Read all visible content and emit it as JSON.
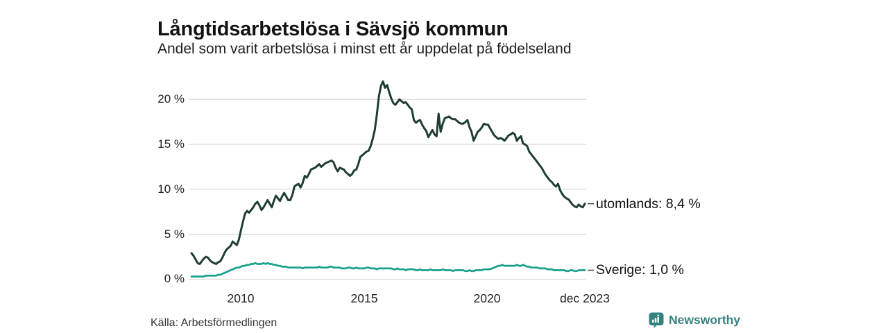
{
  "header": {
    "title": "Långtidsarbetslösa i Sävsjö kommun",
    "subtitle": "Andel som varit arbetslösa i minst ett år uppdelat på födelseland"
  },
  "footer": {
    "source": "Källa: Arbetsförmedlingen",
    "brand_name": "Newsworthy",
    "brand_icon": "newsworthy-speech-bubble-bar-chart-icon"
  },
  "colors": {
    "utomlands_line": "#1f3d34",
    "sverige_line": "#16a08a",
    "grid": "#dcdcdc",
    "tick_text": "#222222",
    "title_text": "#131313",
    "legend_dash": "#4a4a4a",
    "brand_teal": "#35837e"
  },
  "chart_data": {
    "type": "line",
    "title": "Långtidsarbetslösa i Sävsjö kommun",
    "subtitle": "Andel som varit arbetslösa i minst ett år uppdelat på födelseland",
    "unit": "%",
    "frequency": "monthly",
    "x_start": "2008-01",
    "x_end": "2023-12",
    "x_tick_labels": [
      "2010",
      "2015",
      "2020",
      "dec 2023"
    ],
    "y_tick_labels": [
      "0 %",
      "5 %",
      "10 %",
      "15 %",
      "20 %"
    ],
    "y_tick_values": [
      0,
      5,
      10,
      15,
      20
    ],
    "ylim": [
      0,
      22.5
    ],
    "grid": "horizontal",
    "legend_position": "right-of-line-end",
    "series": [
      {
        "name": "utomlands",
        "end_label": "utomlands: 8,4 %",
        "last_value": 8.4,
        "color": "#1f3d34",
        "values": [
          2.9,
          2.6,
          2.2,
          1.8,
          1.7,
          2.0,
          2.3,
          2.5,
          2.4,
          2.1,
          1.9,
          1.8,
          1.7,
          1.9,
          2.0,
          2.4,
          2.9,
          3.3,
          3.5,
          3.7,
          4.2,
          4.0,
          3.8,
          4.4,
          5.4,
          6.4,
          7.3,
          7.6,
          7.4,
          7.7,
          8.0,
          8.4,
          8.6,
          8.2,
          7.7,
          8.0,
          8.4,
          8.8,
          8.4,
          8.0,
          8.7,
          9.3,
          9.0,
          8.7,
          9.2,
          9.6,
          9.2,
          8.8,
          8.8,
          9.4,
          10.3,
          10.5,
          10.6,
          10.2,
          10.7,
          11.5,
          11.3,
          11.7,
          12.2,
          12.3,
          12.4,
          12.6,
          12.8,
          12.5,
          12.7,
          12.9,
          13.0,
          13.1,
          13.2,
          13.0,
          12.4,
          12.0,
          12.4,
          12.3,
          12.2,
          11.9,
          11.7,
          11.5,
          11.7,
          12.1,
          12.2,
          12.8,
          13.6,
          13.8,
          14.0,
          14.2,
          14.3,
          14.8,
          15.6,
          16.6,
          18.3,
          20.3,
          21.5,
          22.0,
          21.3,
          21.6,
          20.8,
          20.1,
          19.6,
          19.4,
          19.7,
          20.0,
          19.8,
          19.6,
          19.7,
          19.4,
          19.1,
          18.9,
          17.7,
          17.4,
          17.6,
          17.7,
          17.2,
          16.8,
          16.5,
          15.8,
          16.2,
          16.6,
          16.1,
          15.9,
          18.4,
          16.4,
          17.3,
          17.9,
          18.0,
          18.1,
          17.9,
          17.8,
          17.8,
          17.6,
          17.4,
          17.3,
          17.3,
          17.5,
          17.7,
          16.9,
          16.4,
          15.4,
          15.9,
          16.4,
          16.6,
          16.9,
          17.3,
          17.2,
          17.2,
          16.8,
          16.4,
          16.0,
          15.8,
          15.6,
          15.7,
          15.6,
          15.4,
          15.7,
          16.0,
          16.1,
          16.3,
          16.1,
          15.4,
          15.7,
          15.9,
          15.1,
          15.0,
          14.8,
          14.2,
          13.9,
          13.6,
          13.3,
          13.0,
          12.7,
          12.4,
          12.0,
          11.6,
          11.3,
          11.0,
          10.8,
          10.5,
          10.3,
          10.6,
          9.9,
          9.5,
          9.2,
          9.0,
          8.9,
          8.6,
          8.3,
          8.1,
          8.0,
          8.3,
          8.1,
          8.0,
          8.4
        ]
      },
      {
        "name": "Sverige",
        "end_label": "Sverige: 1,0 %",
        "last_value": 1.0,
        "color": "#16a08a",
        "values": [
          0.3,
          0.3,
          0.3,
          0.3,
          0.3,
          0.3,
          0.3,
          0.4,
          0.4,
          0.4,
          0.4,
          0.4,
          0.4,
          0.5,
          0.5,
          0.6,
          0.7,
          0.8,
          0.9,
          1.0,
          1.1,
          1.2,
          1.3,
          1.3,
          1.4,
          1.5,
          1.5,
          1.6,
          1.6,
          1.7,
          1.7,
          1.8,
          1.7,
          1.7,
          1.7,
          1.8,
          1.7,
          1.8,
          1.7,
          1.7,
          1.6,
          1.6,
          1.5,
          1.5,
          1.4,
          1.4,
          1.4,
          1.3,
          1.3,
          1.3,
          1.3,
          1.3,
          1.3,
          1.3,
          1.2,
          1.3,
          1.3,
          1.3,
          1.3,
          1.3,
          1.3,
          1.3,
          1.4,
          1.3,
          1.3,
          1.3,
          1.3,
          1.4,
          1.4,
          1.3,
          1.3,
          1.3,
          1.3,
          1.2,
          1.2,
          1.2,
          1.3,
          1.3,
          1.2,
          1.2,
          1.3,
          1.2,
          1.2,
          1.2,
          1.2,
          1.3,
          1.3,
          1.2,
          1.2,
          1.2,
          1.1,
          1.2,
          1.2,
          1.2,
          1.2,
          1.2,
          1.2,
          1.2,
          1.1,
          1.1,
          1.2,
          1.1,
          1.1,
          1.1,
          1.0,
          1.1,
          1.1,
          1.1,
          1.1,
          1.0,
          1.0,
          1.1,
          1.0,
          1.0,
          1.0,
          1.0,
          1.1,
          1.0,
          1.0,
          1.0,
          1.0,
          1.0,
          1.1,
          1.0,
          1.0,
          1.0,
          1.0,
          0.9,
          1.0,
          1.0,
          1.0,
          1.0,
          1.0,
          0.9,
          0.9,
          1.0,
          0.9,
          0.9,
          1.0,
          1.0,
          1.0,
          1.0,
          1.1,
          1.1,
          1.1,
          1.1,
          1.2,
          1.3,
          1.4,
          1.5,
          1.5,
          1.6,
          1.5,
          1.5,
          1.5,
          1.5,
          1.5,
          1.5,
          1.6,
          1.5,
          1.5,
          1.6,
          1.5,
          1.4,
          1.4,
          1.3,
          1.3,
          1.3,
          1.3,
          1.2,
          1.2,
          1.2,
          1.2,
          1.1,
          1.1,
          1.1,
          1.0,
          1.0,
          1.0,
          1.0,
          1.0,
          1.0,
          0.9,
          0.9,
          1.0,
          1.0,
          0.9,
          0.9,
          1.0,
          1.0,
          1.0,
          1.0
        ]
      }
    ]
  }
}
